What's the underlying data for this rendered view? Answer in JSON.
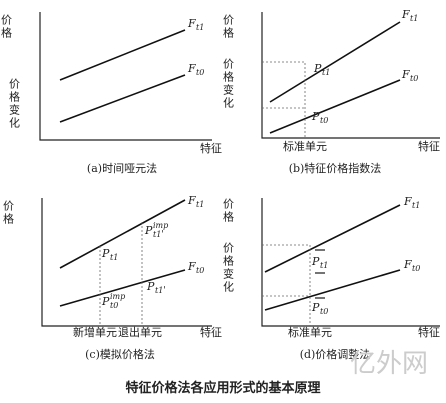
{
  "title": "特征价格法各应用形式的基本原理",
  "watermark": "亿外网",
  "panels": [
    {
      "y_label": "价格",
      "change_label": "价格变化",
      "x_label": "特征",
      "lines": [
        {
          "main": "F",
          "sub": "t1"
        },
        {
          "main": "F",
          "sub": "t0"
        }
      ],
      "caption": "(a)时间哑元法"
    },
    {
      "y_label": "价格",
      "change_label": "价格变化",
      "x_label": "特征",
      "lines": [
        {
          "main": "F",
          "sub": "t1"
        },
        {
          "main": "F",
          "sub": "t0"
        }
      ],
      "points": [
        {
          "main": "P",
          "sub": "t1"
        },
        {
          "main": "P",
          "sub": "t0"
        }
      ],
      "markers": [
        "标准单元"
      ],
      "caption": "(b)特征价格指数法"
    },
    {
      "y_label": "价格",
      "x_label": "特征",
      "lines": [
        {
          "main": "F",
          "sub": "t1"
        },
        {
          "main": "F",
          "sub": "t0"
        }
      ],
      "points": [
        {
          "main": "P",
          "sub": "t1"
        },
        {
          "main": "P",
          "sub": "t1",
          "sup": "imp",
          "suffix": "'"
        },
        {
          "main": "P",
          "sub": "t0",
          "sup": "imp"
        },
        {
          "main": "P",
          "sub": "t1",
          "suffix": "'"
        }
      ],
      "markers": [
        "新增单元",
        "退出单元"
      ],
      "caption": "(c)模拟价格法"
    },
    {
      "y_label": "价格",
      "change_label": "价格变化",
      "x_label": "特征",
      "lines": [
        {
          "main": "F",
          "sub": "t1"
        },
        {
          "main": "F",
          "sub": "t0"
        }
      ],
      "points": [
        {
          "main": "P",
          "sub": "t1"
        },
        {
          "main": "P",
          "sub": "t0"
        }
      ],
      "markers": [
        "标准单元"
      ],
      "caption": "(d)价格调整法"
    }
  ]
}
